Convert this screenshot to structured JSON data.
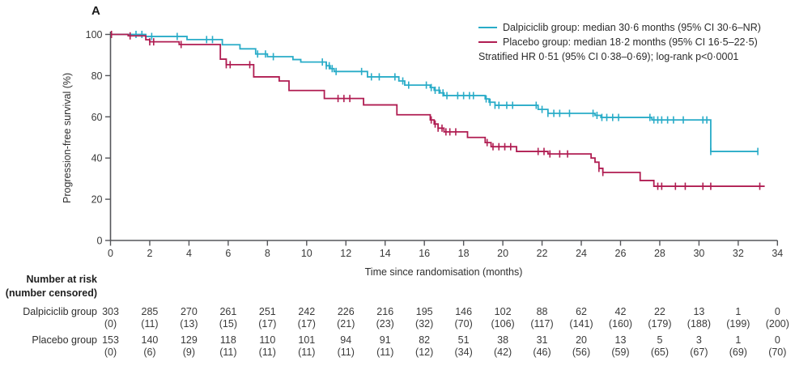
{
  "panel_label": "A",
  "colors": {
    "dalpiciclib": "#29ACC8",
    "placebo": "#B01D52",
    "axis": "#55565A",
    "tick_text": "#3a3a3a"
  },
  "legend": {
    "entries": [
      {
        "key": "dalpiciclib",
        "label": "Dalpiciclib group: median 30·6 months (95% CI 30·6–NR)"
      },
      {
        "key": "placebo",
        "label": "Placebo group: median 18·2 months (95% CI 16·5–22·5)"
      }
    ],
    "note": "Stratified HR 0·51 (95% CI 0·38–0·69); log-rank p<0·0001"
  },
  "chart_data": {
    "type": "line",
    "subtype": "kaplan_meier_step",
    "title": "",
    "xlabel": "Time since randomisation (months)",
    "ylabel": "Progression-free survival (%)",
    "xlim": [
      0,
      34
    ],
    "ylim": [
      0,
      100
    ],
    "xticks": [
      0,
      2,
      4,
      6,
      8,
      10,
      12,
      14,
      16,
      18,
      20,
      22,
      24,
      26,
      28,
      30,
      32,
      34
    ],
    "yticks": [
      0,
      20,
      40,
      60,
      80,
      100
    ],
    "grid": false,
    "legend_position": "top-right",
    "series": [
      {
        "name": "Dalpiciclib group",
        "color_key": "dalpiciclib",
        "steps": [
          [
            0,
            100
          ],
          [
            1.8,
            99
          ],
          [
            3.9,
            97.5
          ],
          [
            5.7,
            95
          ],
          [
            6.6,
            93
          ],
          [
            7.4,
            90.5
          ],
          [
            8.0,
            89.2
          ],
          [
            9.3,
            87.8
          ],
          [
            9.7,
            86.6
          ],
          [
            11.0,
            84.8
          ],
          [
            11.2,
            83.4
          ],
          [
            11.4,
            82.0
          ],
          [
            13.1,
            79.4
          ],
          [
            14.7,
            77.4
          ],
          [
            15.0,
            75.4
          ],
          [
            16.3,
            74.2
          ],
          [
            16.5,
            72.9
          ],
          [
            16.8,
            71.6
          ],
          [
            17.0,
            70.3
          ],
          [
            19.1,
            68.7
          ],
          [
            19.3,
            67.1
          ],
          [
            19.6,
            65.6
          ],
          [
            21.8,
            63.6
          ],
          [
            22.3,
            61.7
          ],
          [
            24.7,
            60.7
          ],
          [
            25.0,
            59.7
          ],
          [
            27.6,
            58.5
          ],
          [
            30.6,
            43.2
          ]
        ],
        "end_time": 33.0,
        "censor_times": [
          1.3,
          1.6,
          2.1,
          3.4,
          4.9,
          5.2,
          7.5,
          7.9,
          8.3,
          10.8,
          11.0,
          11.15,
          11.3,
          11.5,
          12.8,
          13.3,
          13.7,
          14.5,
          14.9,
          15.2,
          16.1,
          16.35,
          16.55,
          16.75,
          16.95,
          17.15,
          17.7,
          18.0,
          18.3,
          18.5,
          19.15,
          19.35,
          19.6,
          19.8,
          20.2,
          20.5,
          21.7,
          22.0,
          22.3,
          22.6,
          22.9,
          23.4,
          24.6,
          24.8,
          25.05,
          25.3,
          25.6,
          25.9,
          27.5,
          27.7,
          27.9,
          28.1,
          28.4,
          28.7,
          29.2,
          30.2,
          30.4,
          30.6,
          33.0
        ]
      },
      {
        "name": "Placebo group",
        "color_key": "placebo",
        "steps": [
          [
            0,
            100
          ],
          [
            0.9,
            99.3
          ],
          [
            1.8,
            97.4
          ],
          [
            2.0,
            96.4
          ],
          [
            3.5,
            95.1
          ],
          [
            5.6,
            88
          ],
          [
            5.9,
            85.3
          ],
          [
            7.3,
            79.4
          ],
          [
            8.6,
            77.4
          ],
          [
            9.1,
            72.8
          ],
          [
            10.9,
            68.9
          ],
          [
            12.9,
            65.8
          ],
          [
            14.6,
            61.0
          ],
          [
            16.3,
            58.5
          ],
          [
            16.5,
            56.5
          ],
          [
            16.7,
            54.5
          ],
          [
            17.0,
            52.7
          ],
          [
            18.2,
            50.0
          ],
          [
            19.1,
            47.5
          ],
          [
            19.4,
            45.5
          ],
          [
            20.7,
            43.2
          ],
          [
            22.3,
            42.0
          ],
          [
            24.5,
            40.0
          ],
          [
            24.7,
            38.0
          ],
          [
            24.9,
            35.0
          ],
          [
            25.1,
            33.0
          ],
          [
            27.0,
            29.1
          ],
          [
            27.7,
            26.3
          ]
        ],
        "end_time": 33.35,
        "censor_times": [
          0.05,
          1.0,
          2.0,
          2.2,
          3.6,
          5.9,
          6.1,
          7.1,
          11.6,
          11.9,
          12.2,
          16.35,
          16.55,
          16.7,
          16.9,
          17.1,
          17.3,
          17.6,
          19.2,
          19.5,
          19.8,
          20.1,
          20.4,
          21.8,
          22.1,
          22.4,
          22.9,
          23.3,
          24.9,
          25.1,
          27.9,
          28.1,
          28.8,
          29.3,
          30.2,
          30.6,
          33.1
        ]
      }
    ]
  },
  "risk_table": {
    "header_line1": "Number at risk",
    "header_line2": "(number censored)",
    "time_points": [
      0,
      2,
      4,
      6,
      8,
      10,
      12,
      14,
      16,
      18,
      20,
      22,
      24,
      26,
      28,
      30,
      32,
      34
    ],
    "rows": [
      {
        "label": "Dalpiciclib group",
        "at_risk": [
          "303",
          "285",
          "270",
          "261",
          "251",
          "242",
          "226",
          "216",
          "195",
          "146",
          "102",
          "88",
          "62",
          "42",
          "22",
          "13",
          "1",
          "0"
        ],
        "censored": [
          "(0)",
          "(11)",
          "(13)",
          "(15)",
          "(17)",
          "(17)",
          "(21)",
          "(23)",
          "(32)",
          "(70)",
          "(106)",
          "(117)",
          "(141)",
          "(160)",
          "(179)",
          "(188)",
          "(199)",
          "(200)"
        ]
      },
      {
        "label": "Placebo group",
        "at_risk": [
          "153",
          "140",
          "129",
          "118",
          "110",
          "101",
          "94",
          "91",
          "82",
          "51",
          "38",
          "31",
          "20",
          "13",
          "5",
          "3",
          "1",
          "0"
        ],
        "censored": [
          "(0)",
          "(6)",
          "(9)",
          "(11)",
          "(11)",
          "(11)",
          "(11)",
          "(11)",
          "(12)",
          "(34)",
          "(42)",
          "(46)",
          "(56)",
          "(59)",
          "(65)",
          "(67)",
          "(69)",
          "(70)"
        ]
      }
    ]
  }
}
